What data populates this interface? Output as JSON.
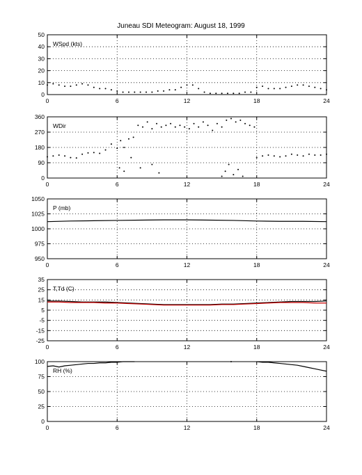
{
  "title": "Juneau SDI Meteogram:     August 18, 1999",
  "chart_data": [
    {
      "type": "line",
      "label": "WSpd (kts)",
      "xlim": [
        0,
        24
      ],
      "ylim": [
        0,
        50
      ],
      "xticks": [
        0,
        6,
        12,
        18,
        24
      ],
      "yticks": [
        0,
        10,
        20,
        30,
        40,
        50
      ],
      "grid": true,
      "series": [
        {
          "color": "#000000",
          "style": "dots",
          "x": [
            0,
            0.5,
            1,
            1.5,
            2,
            2.5,
            3,
            3.5,
            4,
            4.5,
            5,
            5.5,
            6,
            6.5,
            7,
            7.5,
            8,
            8.5,
            9,
            9.5,
            10,
            10.5,
            11,
            11.5,
            12,
            12.5,
            13,
            13.5,
            14,
            14.5,
            15,
            15.5,
            16,
            16.5,
            17,
            17.5,
            18,
            18.5,
            19,
            19.5,
            20,
            20.5,
            21,
            21.5,
            22,
            22.5,
            23,
            23.5,
            24
          ],
          "y": [
            8,
            9,
            8,
            7,
            7,
            8,
            9,
            8,
            6,
            5,
            5,
            4,
            3,
            2,
            2,
            2,
            2,
            2,
            2,
            3,
            3,
            4,
            4,
            6,
            8,
            8,
            5,
            2,
            1,
            1,
            1,
            1,
            1,
            1,
            2,
            2,
            6,
            7,
            5,
            5,
            5,
            6,
            7,
            8,
            8,
            7,
            6,
            5,
            4
          ]
        }
      ]
    },
    {
      "type": "scatter",
      "label": "WDir",
      "xlim": [
        0,
        24
      ],
      "ylim": [
        0,
        360
      ],
      "xticks": [
        0,
        6,
        12,
        18,
        24
      ],
      "yticks": [
        0,
        90,
        180,
        270,
        360
      ],
      "grid": true,
      "series": [
        {
          "color": "#000000",
          "style": "dots",
          "x": [
            0,
            0.5,
            1,
            1.5,
            2,
            2.5,
            3,
            3.5,
            4,
            4.5,
            5,
            5.5,
            6,
            6.3,
            6.6,
            7,
            7.4,
            7.8,
            8.2,
            8.6,
            9,
            9.4,
            9.8,
            10.2,
            10.6,
            11,
            11.4,
            11.8,
            12.2,
            12.6,
            13,
            13.4,
            13.8,
            14.2,
            14.6,
            15,
            15.4,
            15.8,
            16.2,
            16.6,
            17,
            17.4,
            17.8,
            18,
            18.5,
            19,
            19.5,
            20,
            20.5,
            21,
            21.5,
            22,
            22.5,
            23,
            23.5,
            24
          ],
          "y": [
            125,
            130,
            135,
            130,
            120,
            118,
            140,
            148,
            150,
            145,
            165,
            200,
            175,
            220,
            180,
            230,
            240,
            310,
            300,
            330,
            290,
            320,
            300,
            310,
            320,
            300,
            310,
            300,
            290,
            320,
            300,
            330,
            310,
            280,
            320,
            300,
            340,
            350,
            330,
            340,
            320,
            310,
            300,
            120,
            130,
            135,
            130,
            125,
            130,
            140,
            135,
            130,
            140,
            135,
            135,
            140
          ]
        },
        {
          "color": "#000000",
          "style": "dots",
          "x": [
            6.2,
            6.6,
            7.2,
            8.0,
            9.0,
            9.6,
            15.0,
            15.3,
            15.6,
            16.0,
            16.4,
            16.8
          ],
          "y": [
            60,
            40,
            120,
            60,
            80,
            30,
            10,
            40,
            80,
            20,
            50,
            10
          ]
        }
      ]
    },
    {
      "type": "line",
      "label": "P (mb)",
      "xlim": [
        0,
        24
      ],
      "ylim": [
        950,
        1050
      ],
      "xticks": [
        0,
        6,
        12,
        18,
        24
      ],
      "yticks": [
        950,
        975,
        1000,
        1025,
        1050
      ],
      "grid": true,
      "series": [
        {
          "color": "#000000",
          "style": "line",
          "x": [
            0,
            2,
            4,
            6,
            8,
            10,
            12,
            14,
            16,
            18,
            20,
            22,
            24
          ],
          "y": [
            1012,
            1013,
            1013.5,
            1014,
            1014.5,
            1015,
            1015,
            1014.5,
            1014,
            1013,
            1012.5,
            1012.5,
            1012
          ]
        }
      ]
    },
    {
      "type": "line",
      "label": "T,Td (C)",
      "xlim": [
        0,
        24
      ],
      "ylim": [
        -25,
        35
      ],
      "xticks": [
        0,
        6,
        12,
        18,
        24
      ],
      "yticks": [
        -25,
        -15,
        -5,
        5,
        15,
        25,
        35
      ],
      "grid": true,
      "series": [
        {
          "color": "#000000",
          "style": "line",
          "x": [
            0,
            1,
            2,
            3,
            4,
            5,
            6,
            7,
            8,
            9,
            10,
            11,
            12,
            13,
            14,
            15,
            16,
            17,
            18,
            19,
            20,
            21,
            22,
            23,
            24
          ],
          "y": [
            14,
            14,
            13.5,
            13,
            13,
            13,
            12.5,
            12,
            11.5,
            11,
            10.5,
            10.5,
            10.5,
            10.5,
            10.5,
            11,
            11,
            11.5,
            12,
            12.5,
            13,
            13.5,
            13.5,
            13.5,
            14
          ]
        },
        {
          "color": "#cc0000",
          "style": "line",
          "x": [
            0,
            1,
            2,
            3,
            4,
            5,
            6,
            7,
            8,
            9,
            10,
            11,
            12,
            13,
            14,
            15,
            16,
            17,
            18,
            19,
            20,
            21,
            22,
            23,
            24
          ],
          "y": [
            13,
            13,
            12.5,
            12.5,
            12.5,
            12,
            12,
            11.5,
            11,
            10.5,
            10,
            10,
            10,
            10,
            10,
            10.5,
            10.5,
            11,
            11.5,
            12,
            12.5,
            12.5,
            12.5,
            12,
            12
          ]
        }
      ]
    },
    {
      "type": "line",
      "label": "RH (%)",
      "xlim": [
        0,
        24
      ],
      "ylim": [
        0,
        100
      ],
      "xticks": [
        0,
        6,
        12,
        18,
        24
      ],
      "yticks": [
        0,
        25,
        50,
        75,
        100
      ],
      "grid": true,
      "series": [
        {
          "color": "#000000",
          "style": "line",
          "x": [
            0,
            0.5,
            1,
            1.5,
            2,
            2.5,
            3,
            3.5,
            4,
            4.5,
            5,
            5.5,
            6,
            6.5,
            7,
            7.5
          ],
          "y": [
            92,
            93,
            91,
            93,
            94,
            95,
            96,
            97,
            97,
            98,
            98,
            99,
            99,
            100,
            100,
            100
          ]
        },
        {
          "color": "#000000",
          "style": "line",
          "x": [
            18,
            18.5,
            19,
            19.5,
            20,
            20.5,
            21,
            21.5,
            22,
            22.5,
            23,
            23.5,
            24
          ],
          "y": [
            100,
            99,
            99,
            98,
            97,
            96,
            95,
            94,
            92,
            90,
            88,
            86,
            84
          ]
        },
        {
          "color": "#000000",
          "style": "dots",
          "x": [
            15.8
          ],
          "y": [
            100
          ]
        }
      ]
    }
  ]
}
